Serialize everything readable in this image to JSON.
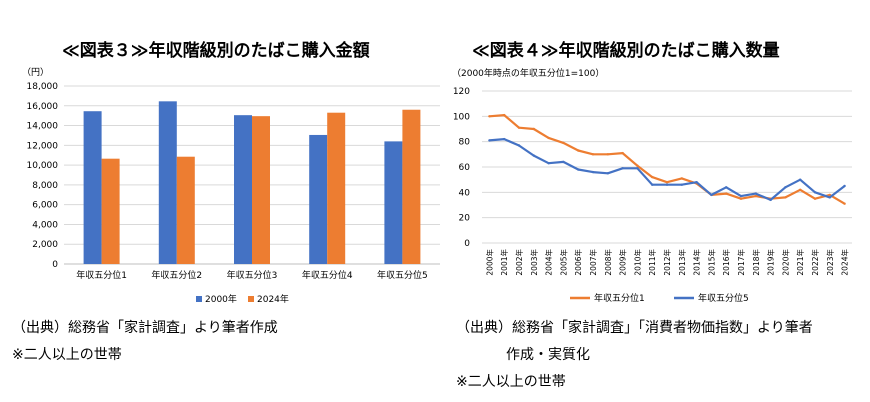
{
  "chart_data": [
    {
      "type": "bar",
      "title": "≪図表３≫年収階級別のたばこ購入金額",
      "unit_label": "（円）",
      "categories": [
        "年収五分位1",
        "年収五分位2",
        "年収五分位3",
        "年収五分位4",
        "年収五分位5"
      ],
      "series": [
        {
          "name": "2000年",
          "color": "#4472c4",
          "values": [
            15450,
            16450,
            15050,
            13050,
            12400
          ]
        },
        {
          "name": "2024年",
          "color": "#ed7d31",
          "values": [
            10650,
            10850,
            14950,
            15300,
            15600
          ]
        }
      ],
      "ylim": [
        0,
        18000
      ],
      "yticks": [
        0,
        2000,
        4000,
        6000,
        8000,
        10000,
        12000,
        14000,
        16000,
        18000
      ],
      "ytick_labels": [
        "0",
        "2,000",
        "4,000",
        "6,000",
        "8,000",
        "10,000",
        "12,000",
        "14,000",
        "16,000",
        "18,000"
      ],
      "grid": true,
      "legend_position": "bottom"
    },
    {
      "type": "line",
      "title": "≪図表４≫年収階級別のたばこ購入数量",
      "unit_label": "（2000年時点の年収五分位1=100）",
      "x": [
        "2000年",
        "2001年",
        "2002年",
        "2003年",
        "2004年",
        "2005年",
        "2006年",
        "2007年",
        "2008年",
        "2009年",
        "2010年",
        "2011年",
        "2012年",
        "2013年",
        "2014年",
        "2015年",
        "2016年",
        "2017年",
        "2018年",
        "2019年",
        "2020年",
        "2021年",
        "2022年",
        "2023年",
        "2024年"
      ],
      "series": [
        {
          "name": "年収五分位1",
          "color": "#ed7d31",
          "values": [
            100,
            101,
            91,
            90,
            83,
            79,
            73,
            70,
            70,
            71,
            61,
            52,
            48,
            51,
            47,
            38,
            39,
            35,
            37,
            35,
            36,
            42,
            35,
            38,
            31
          ]
        },
        {
          "name": "年収五分位5",
          "color": "#4472c4",
          "values": [
            81,
            82,
            77,
            69,
            63,
            64,
            58,
            56,
            55,
            59,
            59,
            46,
            46,
            46,
            48,
            38,
            44,
            37,
            39,
            34,
            44,
            50,
            40,
            36,
            45
          ]
        }
      ],
      "ylim": [
        0,
        120
      ],
      "yticks": [
        0,
        20,
        40,
        60,
        80,
        100,
        120
      ],
      "grid": true,
      "legend_position": "bottom"
    }
  ],
  "notes": {
    "left_source": "（出典）総務省「家計調査」より筆者作成",
    "left_remark": "※二人以上の世帯",
    "right_source_line1": "（出典）総務省「家計調査」「消費者物価指数」より筆者",
    "right_source_line2": "作成・実質化",
    "right_remark": "※二人以上の世帯"
  }
}
